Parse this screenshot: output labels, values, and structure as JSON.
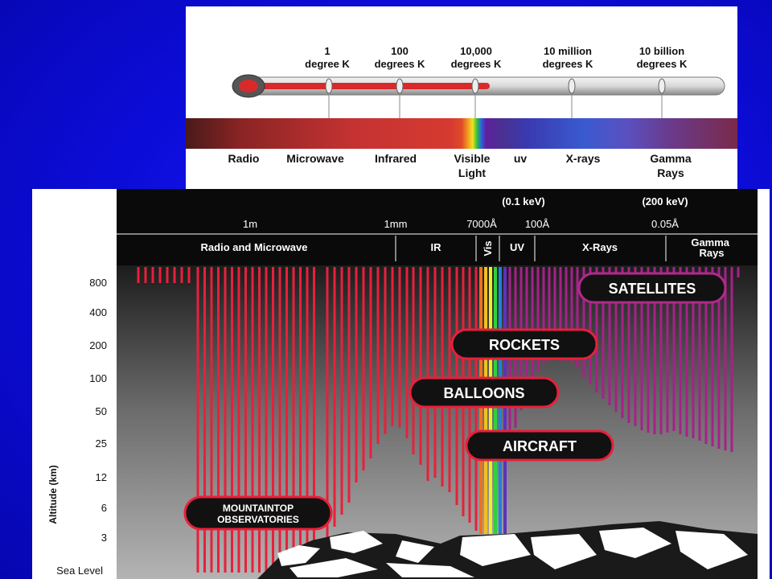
{
  "thermometer": {
    "temperatures": [
      {
        "text": "1\ndegree K"
      },
      {
        "text": "100\ndegrees K"
      },
      {
        "text": "10,000\ndegrees K"
      },
      {
        "text": "10 million\ndegrees K"
      },
      {
        "text": "10 billion\ndegrees K"
      }
    ],
    "bands": [
      {
        "text": "Radio"
      },
      {
        "text": "Microwave"
      },
      {
        "text": "Infrared"
      },
      {
        "text": "Visible\nLight"
      },
      {
        "text": "uv"
      },
      {
        "text": "X-rays"
      },
      {
        "text": "Gamma\nRays"
      }
    ]
  },
  "atmosphere": {
    "energy_labels": [
      "(0.1 keV)",
      "(200 keV)"
    ],
    "wavelength_labels": [
      "1m",
      "1mm",
      "7000Å",
      "100Å",
      "0.05Å"
    ],
    "region_labels": [
      "Radio and Microwave",
      "IR",
      "Vis",
      "UV",
      "X-Rays",
      "Gamma\nRays"
    ],
    "altitude_ticks": [
      "800",
      "400",
      "200",
      "100",
      "50",
      "25",
      "12",
      "6",
      "3",
      "Sea Level"
    ],
    "altitude_axis_label": "Altitude (km)",
    "platforms": [
      "SATELLITES",
      "ROCKETS",
      "BALLOONS",
      "AIRCRAFT",
      "MOUNTAINTOP\nOBSERVATORIES"
    ]
  },
  "colors": {
    "background": "#0c0cd8",
    "radio": "#e8203a",
    "xray": "#a8208a",
    "pill_fill": "#111111"
  }
}
